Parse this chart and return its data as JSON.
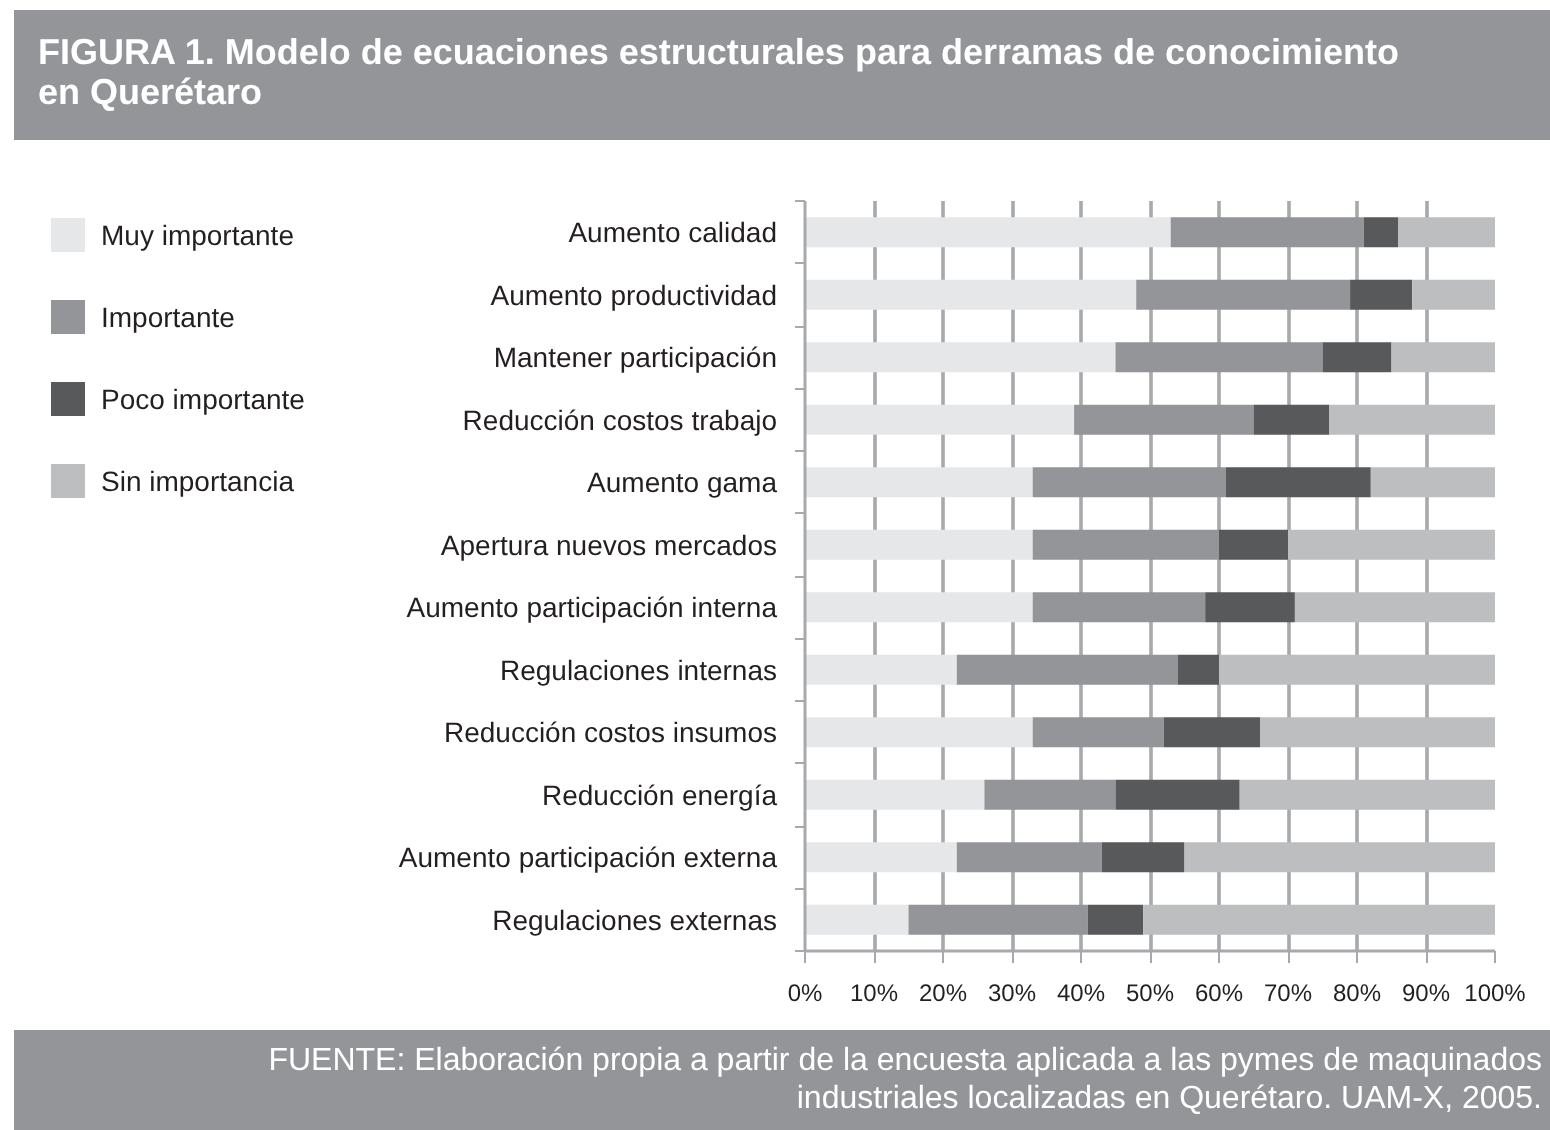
{
  "chart_data": {
    "type": "bar",
    "orientation": "horizontal",
    "stacked": true,
    "title": "FIGURA 1. Modelo de ecuaciones estructurales para derramas de conocimiento en Querétaro",
    "categories": [
      "Aumento calidad",
      "Aumento productividad",
      "Mantener participación",
      "Reducción costos trabajo",
      "Aumento gama",
      "Apertura nuevos mercados",
      "Aumento participación interna",
      "Regulaciones internas",
      "Reducción costos insumos",
      "Reducción energía",
      "Aumento participación externa",
      "Regulaciones externas"
    ],
    "series": [
      {
        "name": "Muy importante",
        "color": "#e6e7e8",
        "values": [
          53,
          48,
          45,
          39,
          33,
          33,
          33,
          22,
          33,
          26,
          22,
          15
        ]
      },
      {
        "name": "Importante",
        "color": "#939598",
        "values": [
          28,
          31,
          30,
          26,
          28,
          27,
          25,
          32,
          19,
          19,
          21,
          26
        ]
      },
      {
        "name": "Poco importante",
        "color": "#58595b",
        "values": [
          5,
          9,
          10,
          11,
          21,
          10,
          13,
          6,
          14,
          18,
          12,
          8
        ]
      },
      {
        "name": "Sin importancia",
        "color": "#bcbec0",
        "values": [
          14,
          12,
          15,
          24,
          18,
          30,
          29,
          40,
          34,
          37,
          45,
          51
        ]
      }
    ],
    "xlim": [
      0,
      100
    ],
    "xticks": [
      {
        "value": 0,
        "label": "0%"
      },
      {
        "value": 10,
        "label": "10%"
      },
      {
        "value": 20,
        "label": "20%"
      },
      {
        "value": 30,
        "label": "30%"
      },
      {
        "value": 40,
        "label": "40%"
      },
      {
        "value": 50,
        "label": "50%"
      },
      {
        "value": 60,
        "label": "60%"
      },
      {
        "value": 70,
        "label": "70%"
      },
      {
        "value": 80,
        "label": "80%"
      },
      {
        "value": 90,
        "label": "90%"
      },
      {
        "value": 100,
        "label": "100%"
      }
    ],
    "grid": "x",
    "legend": "left",
    "annotations": [
      "FUENTE: Elaboración propia a partir de la encuesta aplicada a las pymes de maquinados industriales localizadas en Querétaro. UAM-X, 2005."
    ]
  }
}
